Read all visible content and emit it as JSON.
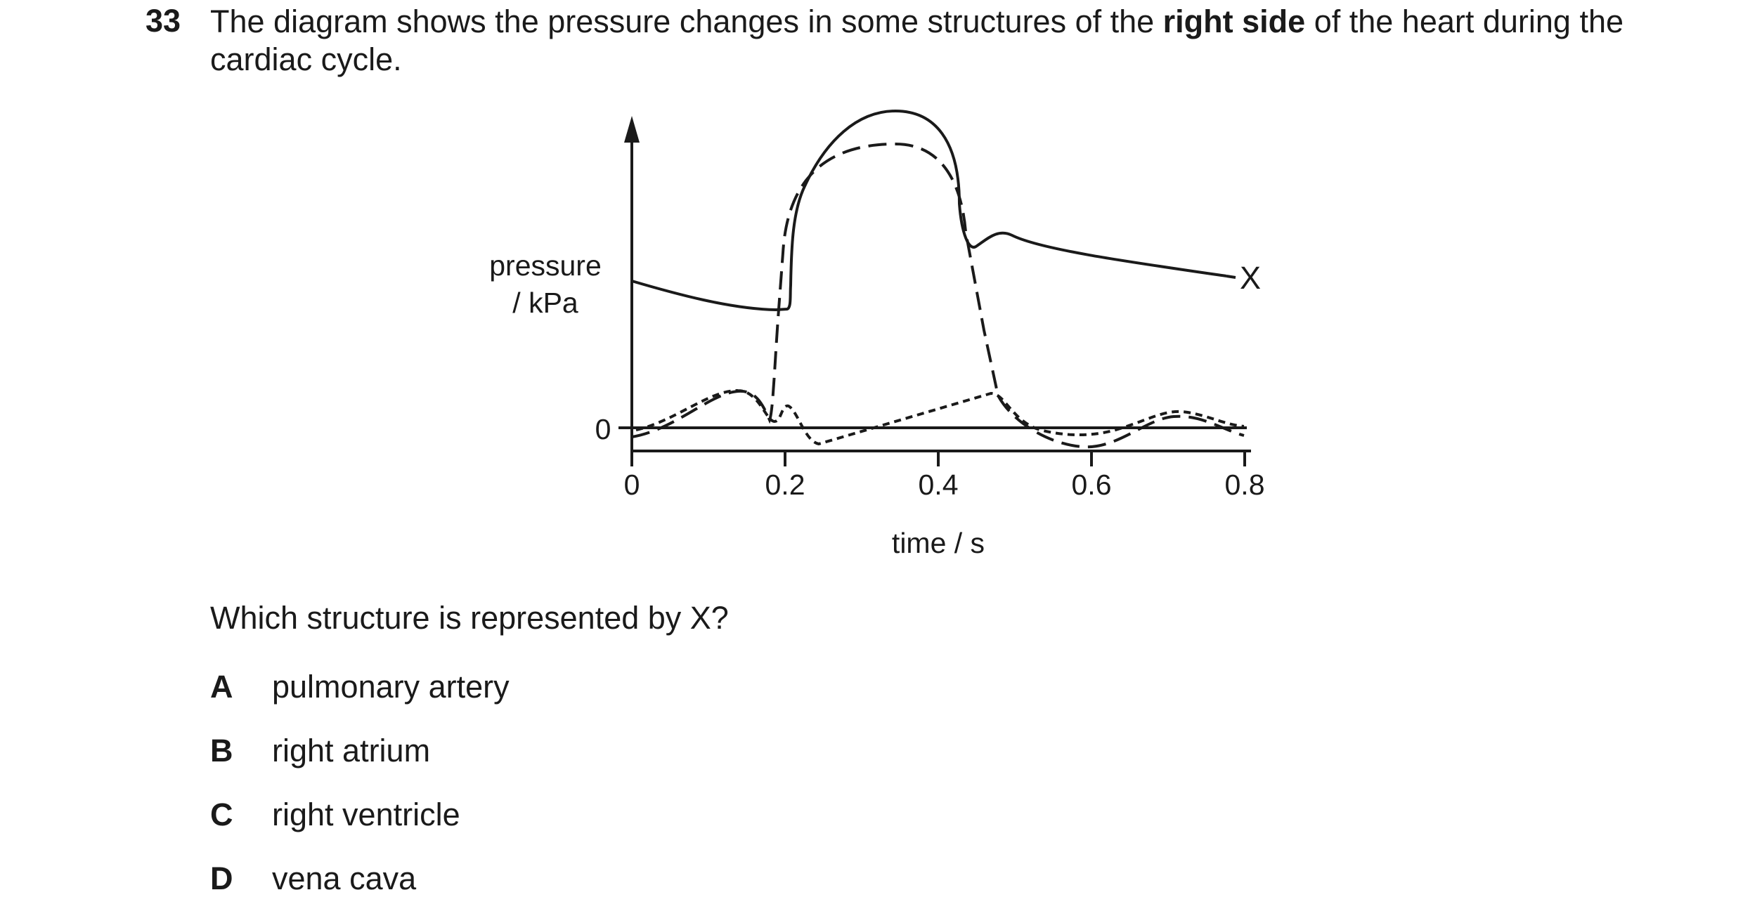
{
  "question": {
    "number": "33",
    "stem_before": "The diagram shows the pressure changes in some structures of the ",
    "stem_bold": "right side",
    "stem_after": " of the heart during the cardiac cycle.",
    "prompt": "Which structure is represented by X?"
  },
  "diagram": {
    "y_label_line1": "pressure",
    "y_label_line2": "/ kPa",
    "y_zero_label": "0",
    "x_label": "time / s",
    "x_ticks": [
      "0",
      "0.2",
      "0.4",
      "0.6",
      "0.8"
    ],
    "curve_label": "X"
  },
  "options": [
    {
      "letter": "A",
      "text": "pulmonary artery"
    },
    {
      "letter": "B",
      "text": "right atrium"
    },
    {
      "letter": "C",
      "text": "right ventricle"
    },
    {
      "letter": "D",
      "text": "vena cava"
    }
  ]
}
